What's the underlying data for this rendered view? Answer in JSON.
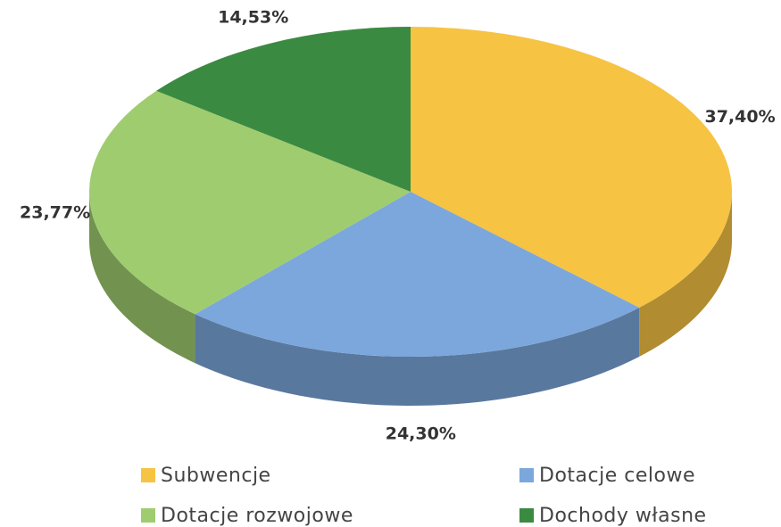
{
  "chart_data": {
    "type": "pie",
    "categories": [
      "Subwencje",
      "Dotacje celowe",
      "Dotacje rozwojowe",
      "Dochody własne"
    ],
    "values": [
      37.4,
      24.3,
      23.77,
      14.53
    ],
    "value_labels": [
      "37,40%",
      "24,30%",
      "23,77%",
      "14,53%"
    ],
    "colors": [
      "#f6c343",
      "#7ba7dc",
      "#9fcc6f",
      "#3b8a41"
    ]
  }
}
